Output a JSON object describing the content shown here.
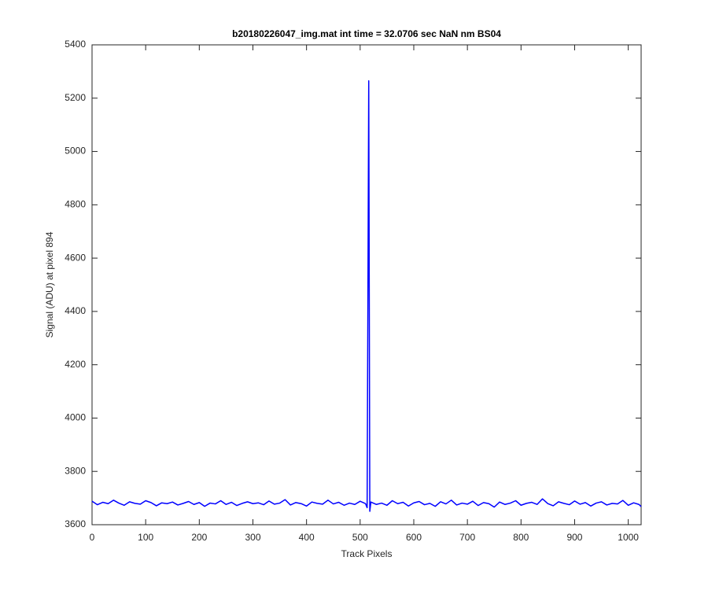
{
  "chart_data": {
    "type": "line",
    "title": "b20180226047_img.mat int time = 32.0706 sec  NaN nm BS04",
    "x_label": "Track Pixels",
    "y_label": "Signal (ADU) at pixel 894",
    "color": "#0000ff",
    "x": [
      0,
      10,
      20,
      30,
      40,
      50,
      60,
      70,
      80,
      90,
      100,
      110,
      120,
      130,
      140,
      150,
      160,
      170,
      180,
      190,
      200,
      210,
      220,
      230,
      240,
      250,
      260,
      270,
      280,
      290,
      300,
      310,
      320,
      330,
      340,
      350,
      360,
      370,
      380,
      390,
      400,
      410,
      420,
      430,
      440,
      450,
      460,
      470,
      480,
      490,
      500,
      510,
      513,
      516,
      518,
      520,
      530,
      540,
      550,
      560,
      570,
      580,
      590,
      600,
      610,
      620,
      630,
      640,
      650,
      660,
      670,
      680,
      690,
      700,
      710,
      720,
      730,
      740,
      750,
      760,
      770,
      780,
      790,
      800,
      810,
      820,
      830,
      840,
      850,
      860,
      870,
      880,
      890,
      900,
      910,
      920,
      930,
      940,
      950,
      960,
      970,
      980,
      990,
      1000,
      1010,
      1020,
      1024
    ],
    "values": [
      3688,
      3675,
      3684,
      3679,
      3692,
      3681,
      3673,
      3686,
      3680,
      3677,
      3690,
      3683,
      3671,
      3682,
      3679,
      3685,
      3674,
      3680,
      3687,
      3676,
      3683,
      3669,
      3681,
      3678,
      3690,
      3676,
      3684,
      3672,
      3680,
      3686,
      3679,
      3682,
      3675,
      3689,
      3677,
      3681,
      3694,
      3674,
      3683,
      3679,
      3670,
      3685,
      3680,
      3677,
      3692,
      3678,
      3684,
      3673,
      3681,
      3676,
      3688,
      3679,
      3664,
      5265,
      3650,
      3685,
      3676,
      3681,
      3673,
      3690,
      3679,
      3684,
      3670,
      3682,
      3687,
      3675,
      3680,
      3669,
      3686,
      3678,
      3692,
      3674,
      3681,
      3677,
      3688,
      3672,
      3683,
      3679,
      3666,
      3685,
      3676,
      3681,
      3690,
      3673,
      3680,
      3684,
      3676,
      3697,
      3679,
      3671,
      3686,
      3680,
      3675,
      3689,
      3677,
      3683,
      3670,
      3681,
      3686,
      3674,
      3680,
      3678,
      3691,
      3673,
      3682,
      3676,
      3668
    ],
    "xlim": [
      0,
      1024
    ],
    "ylim": [
      3600,
      5400
    ],
    "xticks": [
      0,
      100,
      200,
      300,
      400,
      500,
      600,
      700,
      800,
      900,
      1000
    ],
    "yticks": [
      3600,
      3800,
      4000,
      4200,
      4400,
      4600,
      4800,
      5000,
      5200,
      5400
    ]
  }
}
